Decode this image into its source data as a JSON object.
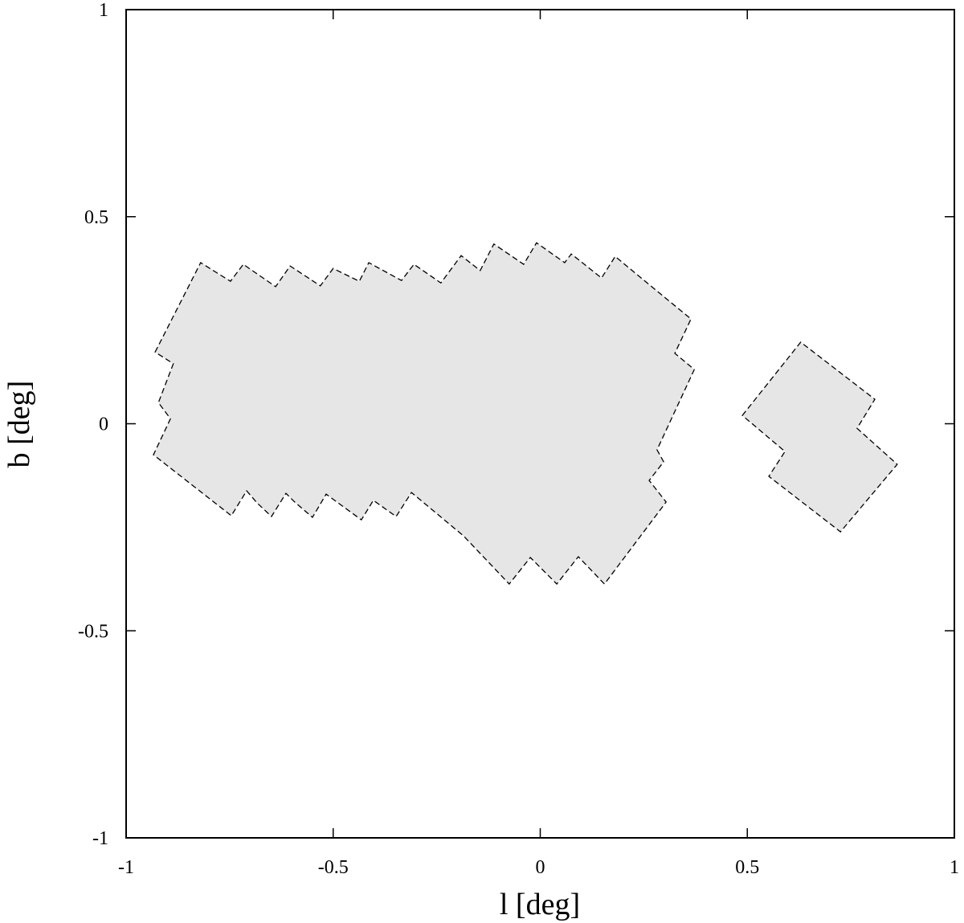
{
  "chart_data": {
    "type": "polygon",
    "xlabel": "l [deg]",
    "ylabel": "b [deg]",
    "xlim": [
      -1,
      1
    ],
    "ylim": [
      -1,
      1
    ],
    "xticks": [
      -1,
      -0.5,
      0,
      0.5,
      1
    ],
    "yticks": [
      -1,
      -0.5,
      0,
      0.5,
      1
    ],
    "series": [
      {
        "color": "#e6e6e6",
        "x": [
          -0.93,
          -0.82,
          -0.748,
          -0.717,
          -0.639,
          -0.604,
          -0.531,
          -0.5,
          -0.437,
          -0.414,
          -0.335,
          -0.305,
          -0.24,
          -0.191,
          -0.145,
          -0.112,
          -0.04,
          -0.009,
          0.059,
          0.075,
          0.148,
          0.181,
          0.234,
          0.364,
          0.325,
          0.372,
          0.282,
          0.298,
          0.263,
          0.304,
          0.155,
          0.092,
          0.04,
          -0.024,
          -0.075,
          -0.185,
          -0.311,
          -0.348,
          -0.403,
          -0.432,
          -0.517,
          -0.55,
          -0.593,
          -0.614,
          -0.649,
          -0.684,
          -0.709,
          -0.746,
          -0.934,
          -0.893,
          -0.922,
          -0.886
        ],
        "values": [
          0.173,
          0.389,
          0.344,
          0.385,
          0.331,
          0.381,
          0.333,
          0.375,
          0.344,
          0.389,
          0.346,
          0.385,
          0.34,
          0.406,
          0.37,
          0.434,
          0.385,
          0.437,
          0.389,
          0.41,
          0.352,
          0.404,
          0.36,
          0.253,
          0.17,
          0.131,
          -0.063,
          -0.092,
          -0.137,
          -0.189,
          -0.387,
          -0.321,
          -0.387,
          -0.323,
          -0.387,
          -0.271,
          -0.166,
          -0.224,
          -0.185,
          -0.232,
          -0.17,
          -0.226,
          -0.189,
          -0.168,
          -0.224,
          -0.191,
          -0.162,
          -0.222,
          -0.075,
          0.012,
          0.051,
          0.145
        ]
      },
      {
        "color": "#e6e6e6",
        "x": [
          0.488,
          0.629,
          0.808,
          0.765,
          0.862,
          0.725,
          0.552,
          0.591
        ],
        "values": [
          0.02,
          0.197,
          0.059,
          -0.011,
          -0.098,
          -0.261,
          -0.127,
          -0.067
        ]
      }
    ]
  }
}
